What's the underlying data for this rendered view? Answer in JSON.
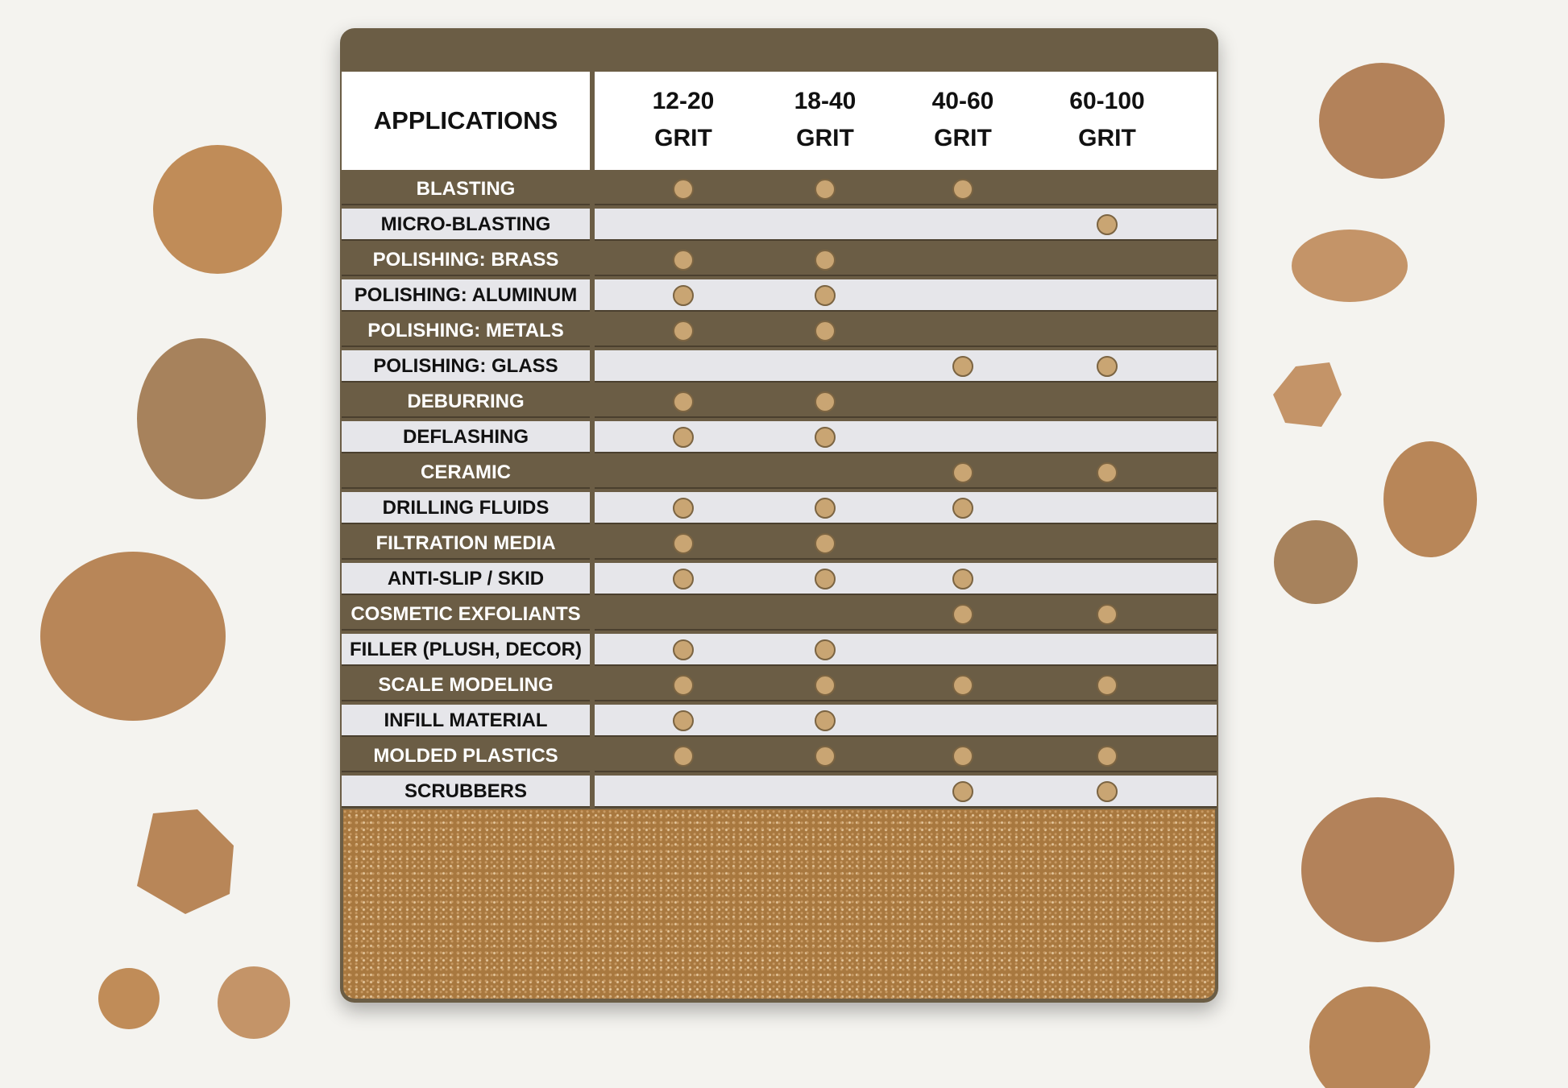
{
  "table": {
    "header": {
      "label": "APPLICATIONS",
      "columns": [
        {
          "range": "12-20",
          "unit": "GRIT"
        },
        {
          "range": "18-40",
          "unit": "GRIT"
        },
        {
          "range": "40-60",
          "unit": "GRIT"
        },
        {
          "range": "60-100",
          "unit": "GRIT"
        }
      ]
    },
    "rows": [
      {
        "label": "BLASTING",
        "marks": [
          true,
          true,
          true,
          false
        ]
      },
      {
        "label": "MICRO-BLASTING",
        "marks": [
          false,
          false,
          false,
          true
        ]
      },
      {
        "label": "POLISHING: BRASS",
        "marks": [
          true,
          true,
          false,
          false
        ]
      },
      {
        "label": "POLISHING: ALUMINUM",
        "marks": [
          true,
          true,
          false,
          false
        ]
      },
      {
        "label": "POLISHING: METALS",
        "marks": [
          true,
          true,
          false,
          false
        ]
      },
      {
        "label": "POLISHING: GLASS",
        "marks": [
          false,
          false,
          true,
          true
        ]
      },
      {
        "label": "DEBURRING",
        "marks": [
          true,
          true,
          false,
          false
        ]
      },
      {
        "label": "DEFLASHING",
        "marks": [
          true,
          true,
          false,
          false
        ]
      },
      {
        "label": "CERAMIC",
        "marks": [
          false,
          false,
          true,
          true
        ]
      },
      {
        "label": "DRILLING FLUIDS",
        "marks": [
          true,
          true,
          true,
          false
        ]
      },
      {
        "label": "FILTRATION MEDIA",
        "marks": [
          true,
          true,
          false,
          false
        ]
      },
      {
        "label": "ANTI-SLIP / SKID",
        "marks": [
          true,
          true,
          true,
          false
        ]
      },
      {
        "label": "COSMETIC EXFOLIANTS",
        "marks": [
          false,
          false,
          true,
          true
        ]
      },
      {
        "label": "FILLER (PLUSH, DECOR)",
        "marks": [
          true,
          true,
          false,
          false
        ]
      },
      {
        "label": "SCALE MODELING",
        "marks": [
          true,
          true,
          true,
          true
        ]
      },
      {
        "label": "INFILL MATERIAL",
        "marks": [
          true,
          true,
          false,
          false
        ]
      },
      {
        "label": "MOLDED PLASTICS",
        "marks": [
          true,
          true,
          true,
          true
        ]
      },
      {
        "label": "SCRUBBERS",
        "marks": [
          false,
          false,
          true,
          true
        ]
      }
    ]
  }
}
